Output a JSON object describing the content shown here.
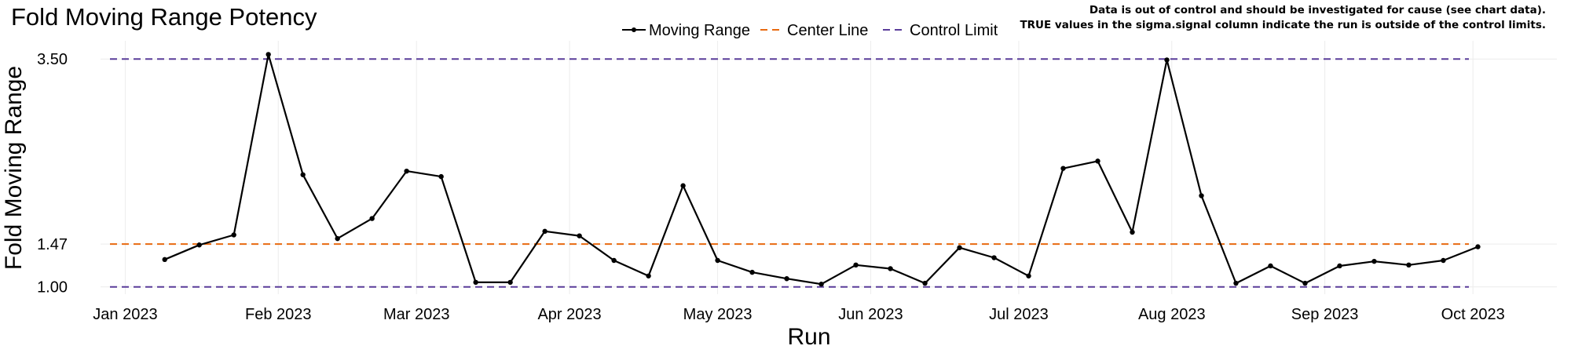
{
  "chart_data": {
    "type": "line",
    "title": "Fold Moving Range Potency",
    "xlabel": "Run",
    "ylabel": "Fold Moving Range",
    "note": [
      "Data is out of control and should be investigated for cause (see chart data).",
      "TRUE values in the sigma.signal column indicate the run is outside of the control limits."
    ],
    "x_ticks": [
      {
        "date": "2023-01-01",
        "label": "Jan 2023"
      },
      {
        "date": "2023-02-01",
        "label": "Feb 2023"
      },
      {
        "date": "2023-03-01",
        "label": "Mar 2023"
      },
      {
        "date": "2023-04-01",
        "label": "Apr 2023"
      },
      {
        "date": "2023-05-01",
        "label": "May 2023"
      },
      {
        "date": "2023-06-01",
        "label": "Jun 2023"
      },
      {
        "date": "2023-07-01",
        "label": "Jul 2023"
      },
      {
        "date": "2023-08-01",
        "label": "Aug 2023"
      },
      {
        "date": "2023-09-01",
        "label": "Sep 2023"
      },
      {
        "date": "2023-10-01",
        "label": "Oct 2023"
      }
    ],
    "y_ticks": [
      {
        "value": 1.0,
        "label": "1.00"
      },
      {
        "value": 1.47,
        "label": "1.47"
      },
      {
        "value": 3.5,
        "label": "3.50"
      }
    ],
    "ylim": [
      0.92,
      3.7
    ],
    "xlim": [
      "2022-12-27",
      "2023-10-18"
    ],
    "grid": true,
    "legend_position": "top",
    "series": [
      {
        "name": "Moving Range",
        "kind": "line-with-points",
        "color": "#000000",
        "x": [
          "2023-01-09",
          "2023-01-16",
          "2023-01-23",
          "2023-01-30",
          "2023-02-06",
          "2023-02-13",
          "2023-02-20",
          "2023-02-27",
          "2023-03-06",
          "2023-03-13",
          "2023-03-20",
          "2023-03-27",
          "2023-04-03",
          "2023-04-10",
          "2023-04-17",
          "2023-04-24",
          "2023-05-01",
          "2023-05-08",
          "2023-05-15",
          "2023-05-22",
          "2023-05-29",
          "2023-06-05",
          "2023-06-12",
          "2023-06-19",
          "2023-06-26",
          "2023-07-03",
          "2023-07-10",
          "2023-07-17",
          "2023-07-24",
          "2023-07-31",
          "2023-08-07",
          "2023-08-14",
          "2023-08-21",
          "2023-08-28",
          "2023-09-04",
          "2023-09-11",
          "2023-09-18",
          "2023-09-25",
          "2023-10-02"
        ],
        "values": [
          1.3,
          1.46,
          1.57,
          3.55,
          2.23,
          1.53,
          1.75,
          2.27,
          2.21,
          1.05,
          1.05,
          1.61,
          1.56,
          1.29,
          1.12,
          2.11,
          1.29,
          1.16,
          1.09,
          1.03,
          1.24,
          1.2,
          1.04,
          1.43,
          1.32,
          1.12,
          2.3,
          2.38,
          1.6,
          3.49,
          2.0,
          1.04,
          1.23,
          1.04,
          1.23,
          1.28,
          1.24,
          1.29,
          1.44
        ]
      },
      {
        "name": "Center Line",
        "kind": "hline",
        "value": 1.47,
        "color": "#e86a10"
      },
      {
        "name": "Control Limit",
        "kind": "hline",
        "values": [
          1.0,
          3.5
        ],
        "color": "#5a3d9a"
      }
    ]
  }
}
